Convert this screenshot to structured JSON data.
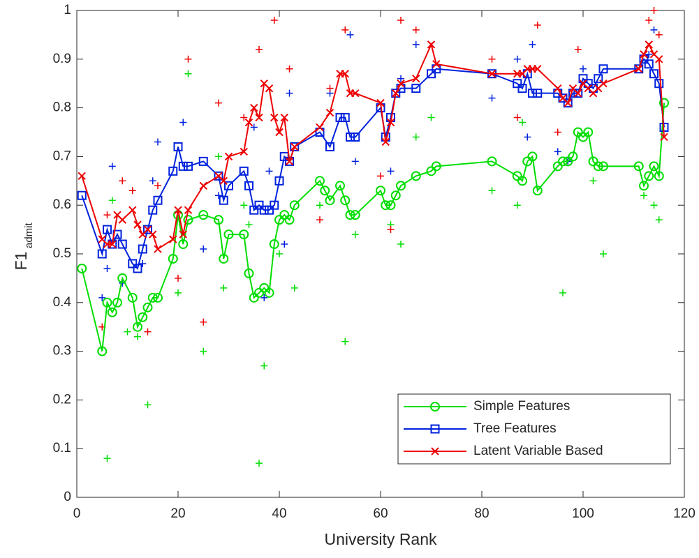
{
  "chart_data": {
    "type": "line",
    "xlabel": "University Rank",
    "ylabel": "F1",
    "ylabel_sub": "admit",
    "xlim": [
      0,
      120
    ],
    "xticks": [
      0,
      20,
      40,
      60,
      80,
      100,
      120
    ],
    "ylim": [
      0,
      1
    ],
    "yticks": [
      0,
      0.1,
      0.2,
      0.3,
      0.4,
      0.5,
      0.6,
      0.7,
      0.8,
      0.9,
      1
    ],
    "legend": "lower right",
    "series": [
      {
        "name": "Simple Features",
        "color": "#00dd00",
        "marker": "circle",
        "x": [
          1,
          5,
          6,
          7,
          8,
          9,
          11,
          12,
          13,
          14,
          15,
          16,
          19,
          20,
          21,
          22,
          25,
          28,
          29,
          30,
          33,
          34,
          35,
          36,
          37,
          38,
          39,
          40,
          41,
          42,
          43,
          48,
          49,
          50,
          52,
          53,
          54,
          55,
          60,
          61,
          62,
          63,
          64,
          67,
          70,
          71,
          82,
          87,
          88,
          89,
          90,
          91,
          95,
          96,
          97,
          98,
          99,
          100,
          101,
          102,
          103,
          104,
          111,
          112,
          113,
          114,
          115,
          116
        ],
        "values": [
          0.47,
          0.3,
          0.4,
          0.38,
          0.4,
          0.45,
          0.41,
          0.35,
          0.37,
          0.39,
          0.41,
          0.41,
          0.49,
          0.58,
          0.52,
          0.57,
          0.58,
          0.57,
          0.49,
          0.54,
          0.54,
          0.46,
          0.41,
          0.42,
          0.43,
          0.42,
          0.52,
          0.57,
          0.58,
          0.57,
          0.6,
          0.65,
          0.63,
          0.61,
          0.64,
          0.61,
          0.58,
          0.58,
          0.63,
          0.6,
          0.6,
          0.62,
          0.64,
          0.66,
          0.67,
          0.68,
          0.69,
          0.66,
          0.65,
          0.69,
          0.7,
          0.63,
          0.68,
          0.69,
          0.69,
          0.7,
          0.75,
          0.74,
          0.75,
          0.69,
          0.68,
          0.68,
          0.68,
          0.64,
          0.66,
          0.68,
          0.66,
          0.81
        ]
      },
      {
        "name": "Tree Features",
        "color": "#0022dd",
        "marker": "square",
        "x": [
          1,
          5,
          6,
          7,
          8,
          9,
          11,
          12,
          13,
          14,
          15,
          16,
          19,
          20,
          21,
          22,
          25,
          28,
          29,
          30,
          33,
          34,
          35,
          36,
          37,
          38,
          39,
          40,
          41,
          42,
          43,
          48,
          50,
          52,
          53,
          54,
          55,
          60,
          61,
          62,
          63,
          64,
          67,
          70,
          71,
          82,
          87,
          88,
          89,
          90,
          91,
          95,
          96,
          97,
          98,
          99,
          100,
          101,
          102,
          103,
          104,
          111,
          112,
          113,
          114,
          115,
          116
        ],
        "values": [
          0.62,
          0.5,
          0.55,
          0.52,
          0.54,
          0.52,
          0.48,
          0.47,
          0.51,
          0.55,
          0.59,
          0.61,
          0.67,
          0.72,
          0.68,
          0.68,
          0.69,
          0.66,
          0.61,
          0.64,
          0.67,
          0.64,
          0.59,
          0.6,
          0.59,
          0.59,
          0.6,
          0.65,
          0.7,
          0.69,
          0.72,
          0.75,
          0.72,
          0.78,
          0.78,
          0.74,
          0.74,
          0.8,
          0.74,
          0.78,
          0.83,
          0.84,
          0.84,
          0.87,
          0.88,
          0.87,
          0.85,
          0.84,
          0.87,
          0.83,
          0.83,
          0.83,
          0.82,
          0.81,
          0.83,
          0.83,
          0.86,
          0.85,
          0.84,
          0.86,
          0.88,
          0.88,
          0.9,
          0.89,
          0.87,
          0.85,
          0.76
        ]
      },
      {
        "name": "Latent Variable Based",
        "color": "#ee0000",
        "marker": "x",
        "x": [
          1,
          5,
          6,
          7,
          8,
          9,
          11,
          12,
          13,
          14,
          15,
          16,
          19,
          20,
          21,
          22,
          25,
          28,
          29,
          30,
          33,
          34,
          35,
          36,
          37,
          38,
          39,
          40,
          41,
          42,
          43,
          48,
          50,
          52,
          53,
          54,
          55,
          60,
          61,
          62,
          63,
          64,
          67,
          70,
          71,
          82,
          87,
          88,
          89,
          90,
          91,
          95,
          96,
          97,
          98,
          99,
          100,
          101,
          102,
          103,
          104,
          111,
          112,
          113,
          114,
          115,
          116
        ],
        "values": [
          0.66,
          0.53,
          0.52,
          0.52,
          0.58,
          0.57,
          0.59,
          0.56,
          0.54,
          0.55,
          0.54,
          0.51,
          0.53,
          0.59,
          0.54,
          0.59,
          0.64,
          0.66,
          0.65,
          0.7,
          0.71,
          0.77,
          0.8,
          0.78,
          0.85,
          0.84,
          0.78,
          0.75,
          0.78,
          0.69,
          0.72,
          0.76,
          0.79,
          0.87,
          0.87,
          0.83,
          0.83,
          0.81,
          0.73,
          0.77,
          0.83,
          0.85,
          0.86,
          0.93,
          0.89,
          0.87,
          0.87,
          0.87,
          0.88,
          0.88,
          0.88,
          0.84,
          0.82,
          0.81,
          0.84,
          0.83,
          0.85,
          0.84,
          0.83,
          0.84,
          0.85,
          0.88,
          0.91,
          0.93,
          0.91,
          0.9,
          0.74
        ]
      }
    ],
    "points": [
      {
        "color": "#00dd00",
        "x": [
          6,
          5,
          7,
          10,
          12,
          14,
          20,
          22,
          25,
          28,
          29,
          33,
          34,
          36,
          37,
          40,
          43,
          48,
          53,
          55,
          62,
          64,
          67,
          70,
          82,
          87,
          88,
          96,
          104,
          112,
          114,
          115,
          102
        ],
        "values": [
          0.08,
          0.35,
          0.61,
          0.34,
          0.33,
          0.19,
          0.42,
          0.87,
          0.3,
          0.7,
          0.43,
          0.6,
          0.56,
          0.07,
          0.27,
          0.5,
          0.43,
          0.6,
          0.32,
          0.54,
          0.56,
          0.52,
          0.74,
          0.78,
          0.63,
          0.6,
          0.77,
          0.42,
          0.5,
          0.62,
          0.6,
          0.57,
          0.65
        ]
      },
      {
        "color": "#0022dd",
        "x": [
          5,
          6,
          7,
          9,
          13,
          15,
          16,
          21,
          25,
          28,
          35,
          37,
          38,
          42,
          41,
          50,
          54,
          55,
          62,
          64,
          67,
          82,
          87,
          89,
          90,
          95,
          97,
          113,
          114,
          100
        ],
        "values": [
          0.41,
          0.47,
          0.68,
          0.44,
          0.48,
          0.65,
          0.73,
          0.77,
          0.51,
          0.62,
          0.76,
          0.41,
          0.67,
          0.83,
          0.52,
          0.83,
          0.95,
          0.69,
          0.67,
          0.86,
          0.93,
          0.82,
          0.9,
          0.74,
          0.93,
          0.71,
          0.69,
          0.91,
          0.96,
          0.88
        ]
      },
      {
        "color": "#ee0000",
        "x": [
          5,
          6,
          9,
          11,
          14,
          16,
          20,
          22,
          25,
          28,
          33,
          36,
          39,
          42,
          48,
          50,
          53,
          60,
          62,
          64,
          67,
          82,
          87,
          91,
          95,
          99,
          114,
          115,
          113
        ],
        "values": [
          0.35,
          0.58,
          0.65,
          0.63,
          0.34,
          0.64,
          0.45,
          0.9,
          0.36,
          0.81,
          0.78,
          0.92,
          0.98,
          0.88,
          0.57,
          0.84,
          0.96,
          0.66,
          0.55,
          0.98,
          0.96,
          0.9,
          0.78,
          0.97,
          0.75,
          0.92,
          1.0,
          0.95,
          0.98
        ]
      }
    ]
  }
}
